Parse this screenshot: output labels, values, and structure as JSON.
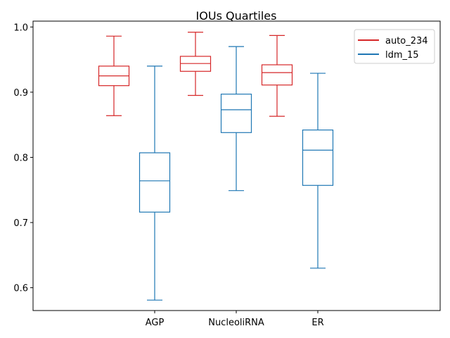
{
  "chart_data": {
    "type": "box",
    "title": "IOUs Quartiles",
    "xlabel": "",
    "ylabel": "",
    "categories": [
      "AGP",
      "NucleoliRNA",
      "ER"
    ],
    "ylim": [
      0.565,
      1.009
    ],
    "yticks": [
      "0.6",
      "0.7",
      "0.8",
      "0.9",
      "1.0"
    ],
    "ytick_values": [
      0.6,
      0.7,
      0.8,
      0.9,
      1.0
    ],
    "grid": false,
    "legend_position": "top-right",
    "series": [
      {
        "name": "auto_234",
        "color": "#d62728",
        "boxes": [
          {
            "whislo": 0.864,
            "q1": 0.91,
            "med": 0.925,
            "q3": 0.94,
            "whishi": 0.986
          },
          {
            "whislo": 0.895,
            "q1": 0.932,
            "med": 0.944,
            "q3": 0.955,
            "whishi": 0.992
          },
          {
            "whislo": 0.863,
            "q1": 0.911,
            "med": 0.93,
            "q3": 0.942,
            "whishi": 0.987
          }
        ]
      },
      {
        "name": "ldm_15",
        "color": "#1f77b4",
        "boxes": [
          {
            "whislo": 0.581,
            "q1": 0.716,
            "med": 0.764,
            "q3": 0.807,
            "whishi": 0.94
          },
          {
            "whislo": 0.749,
            "q1": 0.838,
            "med": 0.873,
            "q3": 0.897,
            "whishi": 0.97
          },
          {
            "whislo": 0.63,
            "q1": 0.757,
            "med": 0.811,
            "q3": 0.842,
            "whishi": 0.929
          }
        ]
      }
    ]
  }
}
